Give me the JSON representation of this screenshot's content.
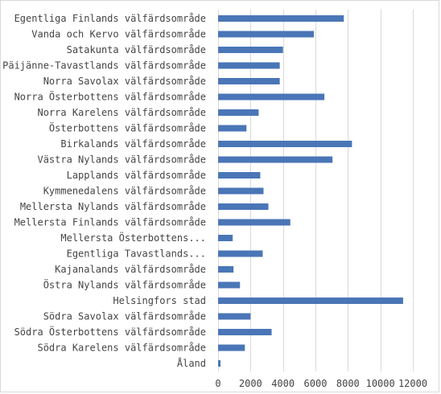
{
  "chart_data": {
    "type": "bar",
    "orientation": "horizontal",
    "title": "",
    "xlabel": "",
    "ylabel": "",
    "xlim": [
      0,
      12000
    ],
    "x_ticks": [
      0,
      2000,
      4000,
      6000,
      8000,
      10000,
      12000
    ],
    "grid": "vertical",
    "legend": "none",
    "bar_color": "#4a76b7",
    "grid_color": "#d9d9d9",
    "categories": [
      "Egentliga Finlands välfärdsområde",
      "Vanda och Kervo välfärdsområde",
      "Satakunta välfärdsområde",
      "Päijänne-Tavastlands välfärdsområde",
      "Norra Savolax välfärdsområde",
      "Norra Österbottens välfärdsområde",
      "Norra Karelens välfärdsområde",
      "Österbottens välfärdsområde",
      "Birkalands välfärdsområde",
      "Västra Nylands välfärdsområde",
      "Lapplands välfärdsområde",
      "Kymmenedalens välfärdsområde",
      "Mellersta Nylands välfärdsområde",
      "Mellersta Finlands välfärdsområde",
      "Mellersta Österbottens...",
      "Egentliga Tavastlands...",
      "Kajanalands välfärdsområde",
      "Östra Nylands välfärdsområde",
      "Helsingfors stad",
      "Södra Savolax välfärdsområde",
      "Södra Österbottens välfärdsområde",
      "Södra Karelens välfärdsområde",
      "Åland"
    ],
    "values": [
      7750,
      5900,
      4000,
      3800,
      3800,
      6550,
      2500,
      1750,
      8250,
      7050,
      2600,
      2800,
      3100,
      4450,
      900,
      2750,
      950,
      1350,
      11400,
      2000,
      3300,
      1650,
      150
    ]
  }
}
